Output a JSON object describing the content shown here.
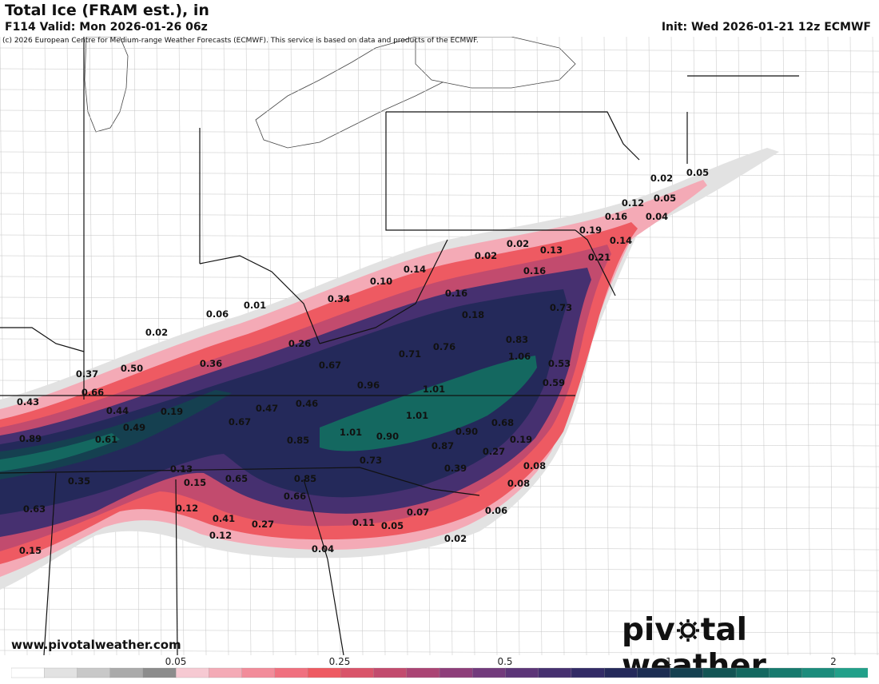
{
  "header": {
    "title": "Total Ice (FRAM est.), in",
    "valid": "F114 Valid: Mon 2026-01-26 06z",
    "init": "Init: Wed 2026-01-21 12z ECMWF",
    "copyright": "(c) 2026 European Centre for Medium-range Weather Forecasts (ECMWF). This service is based on data and products of the ECMWF."
  },
  "footer": {
    "website": "www.pivotalweather.com",
    "brand_left": "piv",
    "brand_right": "tal weather"
  },
  "legend": {
    "colors": [
      "#ffffff",
      "#e2e2e2",
      "#c8c8c8",
      "#aaaaaa",
      "#8c8c8c",
      "#f6c9d2",
      "#f4aab6",
      "#f28c9a",
      "#f0707f",
      "#ee5a62",
      "#d9546a",
      "#c24b6e",
      "#aa4474",
      "#8e3e7a",
      "#723a7c",
      "#5c3578",
      "#463070",
      "#322b66",
      "#24295a",
      "#1c2d52",
      "#154050",
      "#135454",
      "#146860",
      "#177a6e",
      "#1c8c7c",
      "#22a08a"
    ],
    "ticks": [
      "0.05",
      "0.25",
      "0.5",
      "1",
      "2"
    ]
  },
  "map_values": [
    {
      "v": "0.05"
    },
    {
      "v": "0.02"
    },
    {
      "v": "0.05"
    },
    {
      "v": "0.12"
    },
    {
      "v": "0.16"
    },
    {
      "v": "0.04"
    },
    {
      "v": "0.19"
    },
    {
      "v": "0.14"
    },
    {
      "v": "0.21"
    },
    {
      "v": "0.02"
    },
    {
      "v": "0.02"
    },
    {
      "v": "0.13"
    },
    {
      "v": "0.16"
    },
    {
      "v": "0.14"
    },
    {
      "v": "0.10"
    },
    {
      "v": "0.34"
    },
    {
      "v": "0.16"
    },
    {
      "v": "0.18"
    },
    {
      "v": "0.73"
    },
    {
      "v": "0.01"
    },
    {
      "v": "0.06"
    },
    {
      "v": "0.02"
    },
    {
      "v": "0.26"
    },
    {
      "v": "0.71"
    },
    {
      "v": "0.76"
    },
    {
      "v": "0.83"
    },
    {
      "v": "1.06"
    },
    {
      "v": "0.53"
    },
    {
      "v": "0.37"
    },
    {
      "v": "0.50"
    },
    {
      "v": "0.36"
    },
    {
      "v": "0.67"
    },
    {
      "v": "0.59"
    },
    {
      "v": "0.66"
    },
    {
      "v": "0.96"
    },
    {
      "v": "1.01"
    },
    {
      "v": "0.43"
    },
    {
      "v": "0.44"
    },
    {
      "v": "0.19"
    },
    {
      "v": "0.47"
    },
    {
      "v": "0.46"
    },
    {
      "v": "1.01"
    },
    {
      "v": "0.68"
    },
    {
      "v": "0.49"
    },
    {
      "v": "0.67"
    },
    {
      "v": "0.89"
    },
    {
      "v": "0.61"
    },
    {
      "v": "0.85"
    },
    {
      "v": "1.01"
    },
    {
      "v": "0.90"
    },
    {
      "v": "0.90"
    },
    {
      "v": "0.87"
    },
    {
      "v": "0.19"
    },
    {
      "v": "0.27"
    },
    {
      "v": "0.73"
    },
    {
      "v": "0.13"
    },
    {
      "v": "0.35"
    },
    {
      "v": "0.15"
    },
    {
      "v": "0.65"
    },
    {
      "v": "0.85"
    },
    {
      "v": "0.39"
    },
    {
      "v": "0.08"
    },
    {
      "v": "0.08"
    },
    {
      "v": "0.63"
    },
    {
      "v": "0.12"
    },
    {
      "v": "0.66"
    },
    {
      "v": "0.06"
    },
    {
      "v": "0.07"
    },
    {
      "v": "0.41"
    },
    {
      "v": "0.27"
    },
    {
      "v": "0.11"
    },
    {
      "v": "0.05"
    },
    {
      "v": "0.12"
    },
    {
      "v": "0.15"
    },
    {
      "v": "0.02"
    },
    {
      "v": "0.04"
    }
  ]
}
